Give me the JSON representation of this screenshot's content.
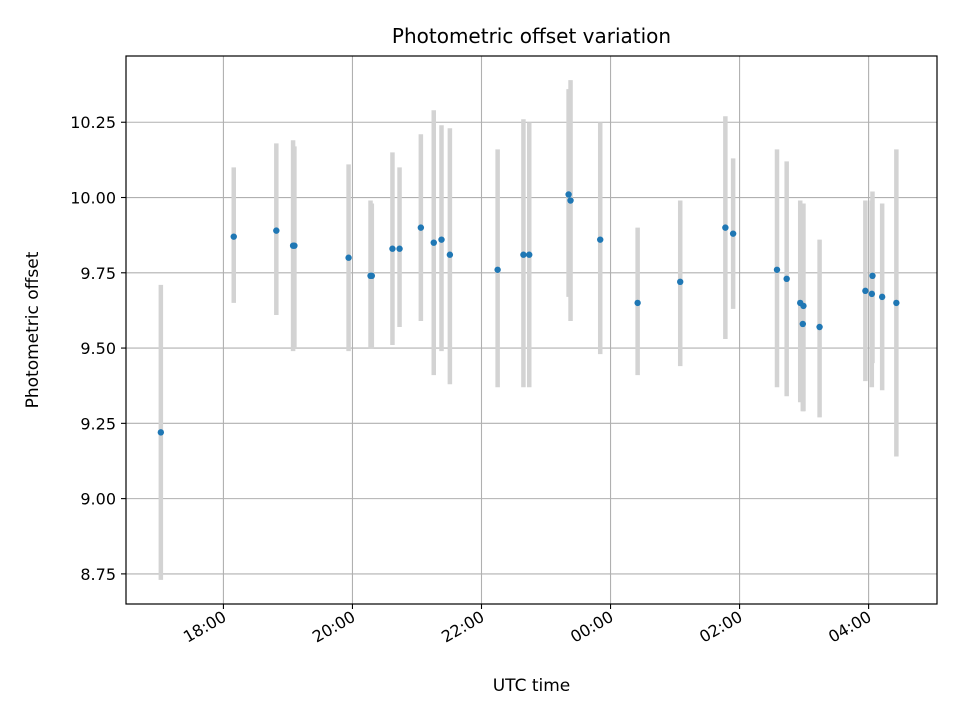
{
  "chart_data": {
    "type": "scatter",
    "title": "Photometric offset variation",
    "xlabel": "UTC time",
    "ylabel": "Photometric offset",
    "x_unit": "hours since 00:00 of first night",
    "xlim": [
      16.49,
      29.06
    ],
    "ylim": [
      8.65,
      10.47
    ],
    "grid": true,
    "colors": {
      "point": "#1f77b4",
      "errorbar": "#d3d3d3",
      "grid": "#b0b0b0",
      "axis": "#000000"
    },
    "x_ticks": [
      {
        "value": 18,
        "label": "18:00"
      },
      {
        "value": 20,
        "label": "20:00"
      },
      {
        "value": 22,
        "label": "22:00"
      },
      {
        "value": 24,
        "label": "00:00"
      },
      {
        "value": 26,
        "label": "02:00"
      },
      {
        "value": 28,
        "label": "04:00"
      }
    ],
    "y_ticks": [
      {
        "value": 8.75,
        "label": "8.75"
      },
      {
        "value": 9.0,
        "label": "9.00"
      },
      {
        "value": 9.25,
        "label": "9.25"
      },
      {
        "value": 9.5,
        "label": "9.50"
      },
      {
        "value": 9.75,
        "label": "9.75"
      },
      {
        "value": 10.0,
        "label": "10.00"
      },
      {
        "value": 10.25,
        "label": "10.25"
      }
    ],
    "points": [
      {
        "x": 17.03,
        "y": 9.22,
        "lo": 8.73,
        "hi": 9.71
      },
      {
        "x": 18.16,
        "y": 9.87,
        "lo": 9.65,
        "hi": 10.1
      },
      {
        "x": 18.82,
        "y": 9.89,
        "lo": 9.61,
        "hi": 10.18
      },
      {
        "x": 19.08,
        "y": 9.84,
        "lo": 9.49,
        "hi": 10.19
      },
      {
        "x": 19.1,
        "y": 9.84,
        "lo": 9.5,
        "hi": 10.17
      },
      {
        "x": 19.94,
        "y": 9.8,
        "lo": 9.49,
        "hi": 10.11
      },
      {
        "x": 20.28,
        "y": 9.74,
        "lo": 9.5,
        "hi": 9.99
      },
      {
        "x": 20.3,
        "y": 9.74,
        "lo": 9.5,
        "hi": 9.98
      },
      {
        "x": 20.62,
        "y": 9.83,
        "lo": 9.51,
        "hi": 10.15
      },
      {
        "x": 20.73,
        "y": 9.83,
        "lo": 9.57,
        "hi": 10.1
      },
      {
        "x": 21.06,
        "y": 9.9,
        "lo": 9.59,
        "hi": 10.21
      },
      {
        "x": 21.26,
        "y": 9.85,
        "lo": 9.41,
        "hi": 10.29
      },
      {
        "x": 21.38,
        "y": 9.86,
        "lo": 9.49,
        "hi": 10.24
      },
      {
        "x": 21.51,
        "y": 9.81,
        "lo": 9.38,
        "hi": 10.23
      },
      {
        "x": 22.25,
        "y": 9.76,
        "lo": 9.37,
        "hi": 10.16
      },
      {
        "x": 22.65,
        "y": 9.81,
        "lo": 9.37,
        "hi": 10.26
      },
      {
        "x": 22.74,
        "y": 9.81,
        "lo": 9.37,
        "hi": 10.25
      },
      {
        "x": 23.35,
        "y": 10.01,
        "lo": 9.67,
        "hi": 10.36
      },
      {
        "x": 23.38,
        "y": 9.99,
        "lo": 9.59,
        "hi": 10.39
      },
      {
        "x": 23.84,
        "y": 9.86,
        "lo": 9.48,
        "hi": 10.25
      },
      {
        "x": 24.42,
        "y": 9.65,
        "lo": 9.41,
        "hi": 9.9
      },
      {
        "x": 25.08,
        "y": 9.72,
        "lo": 9.44,
        "hi": 9.99
      },
      {
        "x": 25.78,
        "y": 9.9,
        "lo": 9.53,
        "hi": 10.27
      },
      {
        "x": 25.9,
        "y": 9.88,
        "lo": 9.63,
        "hi": 10.13
      },
      {
        "x": 26.58,
        "y": 9.76,
        "lo": 9.37,
        "hi": 10.16
      },
      {
        "x": 26.73,
        "y": 9.73,
        "lo": 9.34,
        "hi": 10.12
      },
      {
        "x": 26.94,
        "y": 9.65,
        "lo": 9.32,
        "hi": 9.99
      },
      {
        "x": 26.99,
        "y": 9.64,
        "lo": 9.29,
        "hi": 9.98
      },
      {
        "x": 26.98,
        "y": 9.58,
        "lo": 9.29,
        "hi": 9.88
      },
      {
        "x": 27.24,
        "y": 9.57,
        "lo": 9.27,
        "hi": 9.86
      },
      {
        "x": 27.95,
        "y": 9.69,
        "lo": 9.39,
        "hi": 9.99
      },
      {
        "x": 28.05,
        "y": 9.68,
        "lo": 9.37,
        "hi": 9.99
      },
      {
        "x": 28.06,
        "y": 9.74,
        "lo": 9.45,
        "hi": 10.02
      },
      {
        "x": 28.21,
        "y": 9.67,
        "lo": 9.36,
        "hi": 9.98
      },
      {
        "x": 28.43,
        "y": 9.65,
        "lo": 9.14,
        "hi": 10.16
      }
    ]
  }
}
